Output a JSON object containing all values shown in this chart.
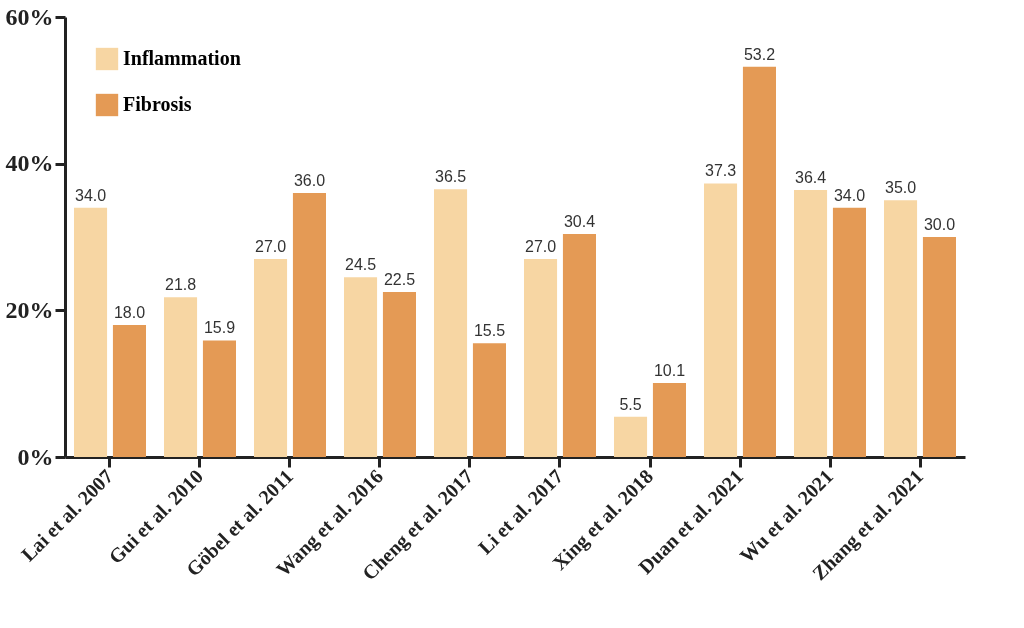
{
  "chart_data": {
    "type": "bar",
    "categories": [
      "Lai et al. 2007",
      "Gui et al. 2010",
      "Göbel et al. 2011",
      "Wang et al. 2016",
      "Cheng et al. 2017",
      "Li et al. 2017",
      "Xing et al. 2018",
      "Duan et al. 2021",
      "Wu et al. 2021",
      "Zhang et al. 2021"
    ],
    "series": [
      {
        "name": "Inflammation",
        "color": "#f7d6a3",
        "values": [
          34.0,
          21.8,
          27.0,
          24.5,
          36.5,
          27.0,
          5.5,
          37.3,
          36.4,
          35.0
        ],
        "value_labels": [
          "34.0",
          "21.8",
          "27.0",
          "24.5",
          "36.5",
          "27.0",
          "5.5",
          "37.3",
          "36.4",
          "35.0"
        ]
      },
      {
        "name": "Fibrosis",
        "color": "#e49a55",
        "values": [
          18.0,
          15.9,
          36.0,
          22.5,
          15.5,
          30.4,
          10.1,
          53.2,
          34.0,
          30.0
        ],
        "value_labels": [
          "18.0",
          "15.9",
          "36.0",
          "22.5",
          "15.5",
          "30.4",
          "10.1",
          "53.2",
          "34.0",
          "30.0"
        ]
      }
    ],
    "ylim": [
      0,
      60
    ],
    "yticks": [
      {
        "value": 0,
        "label": "0%"
      },
      {
        "value": 20,
        "label": "20%"
      },
      {
        "value": 40,
        "label": "40%"
      },
      {
        "value": 60,
        "label": "60%"
      }
    ],
    "grid": false,
    "legend": "top left"
  }
}
